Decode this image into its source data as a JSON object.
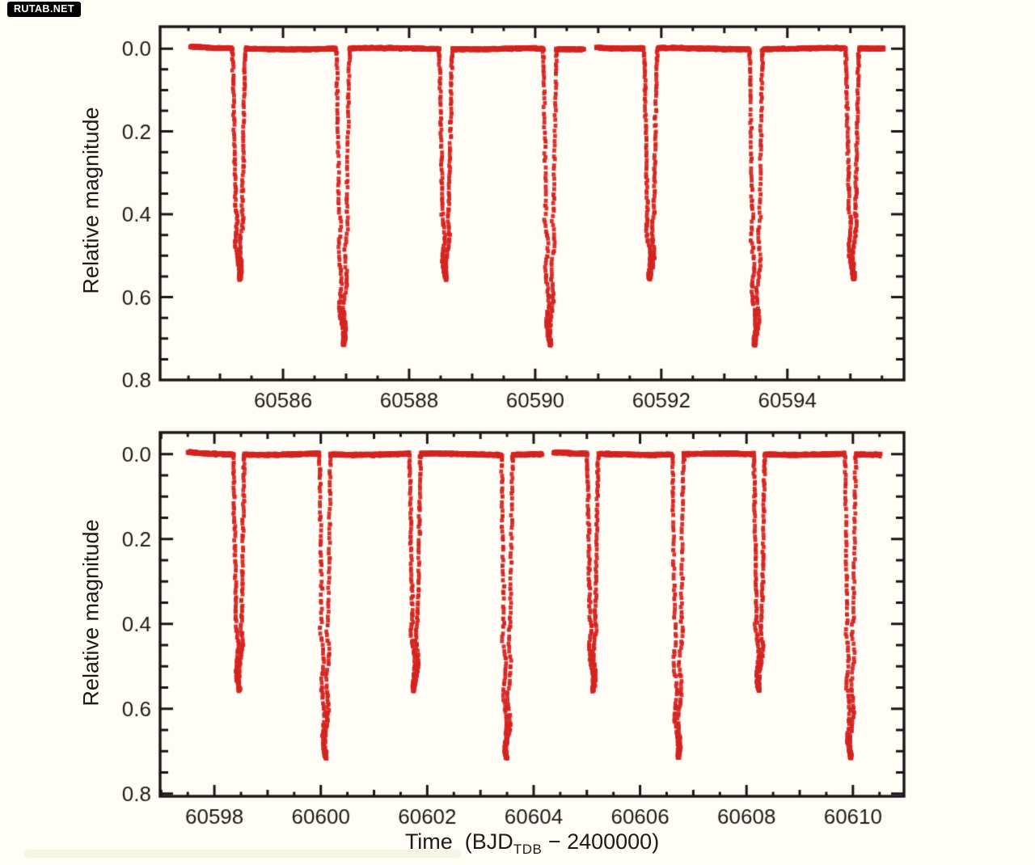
{
  "watermark": {
    "text": "RUTAB.NET",
    "bg": "#000000",
    "fg": "#ffffff"
  },
  "figure": {
    "bg_color": "#fffdf6",
    "axis_color": "#161616",
    "tick_label_color": "#1b1b1b",
    "marker_color": "#d42521",
    "ylabel": "Relative magnitude",
    "xlabel_pre": "Time  (BJD",
    "xlabel_sub": "TDB",
    "xlabel_post": " − 2400000)"
  },
  "chart_data": [
    {
      "type": "scatter",
      "panel": "top",
      "marker": "red-square-dot",
      "grid": false,
      "legend": "none",
      "xlim": [
        60584.05,
        60595.85
      ],
      "ylim": [
        -0.053,
        0.8
      ],
      "y_axis_inverted_magnitude": true,
      "xticks": [
        {
          "v": 60586,
          "label": "60586"
        },
        {
          "v": 60588,
          "label": "60588"
        },
        {
          "v": 60590,
          "label": "60590"
        },
        {
          "v": 60592,
          "label": "60592"
        },
        {
          "v": 60594,
          "label": "60594"
        }
      ],
      "xminor_step": 0.5,
      "yticks": [
        {
          "v": 0.0,
          "label": "0.0"
        },
        {
          "v": 0.2,
          "label": "0.2"
        },
        {
          "v": 0.4,
          "label": "0.4"
        },
        {
          "v": 0.6,
          "label": "0.6"
        },
        {
          "v": 0.8,
          "label": "0.8"
        }
      ],
      "yminor_step": 0.05,
      "baseline_mag": 0.0,
      "data_segments": [
        [
          60584.53,
          60590.77
        ],
        [
          60590.97,
          60595.53
        ]
      ],
      "eclipse_half_width_days": 0.105,
      "eclipses": [
        {
          "t": 60585.3,
          "depth": 0.555
        },
        {
          "t": 60586.95,
          "depth": 0.715
        },
        {
          "t": 60588.58,
          "depth": 0.555
        },
        {
          "t": 60590.23,
          "depth": 0.715
        },
        {
          "t": 60591.83,
          "depth": 0.555
        },
        {
          "t": 60593.5,
          "depth": 0.715
        },
        {
          "t": 60595.03,
          "depth": 0.555
        }
      ]
    },
    {
      "type": "scatter",
      "panel": "bottom",
      "marker": "red-square-dot",
      "grid": false,
      "legend": "none",
      "xlim": [
        60596.98,
        60610.96
      ],
      "ylim": [
        -0.051,
        0.806
      ],
      "y_axis_inverted_magnitude": true,
      "xticks": [
        {
          "v": 60598,
          "label": "60598"
        },
        {
          "v": 60600,
          "label": "60600"
        },
        {
          "v": 60602,
          "label": "60602"
        },
        {
          "v": 60604,
          "label": "60604"
        },
        {
          "v": 60606,
          "label": "60606"
        },
        {
          "v": 60608,
          "label": "60608"
        },
        {
          "v": 60610,
          "label": "60610"
        }
      ],
      "xminor_step": 0.5,
      "yticks": [
        {
          "v": 0.0,
          "label": "0.0"
        },
        {
          "v": 0.2,
          "label": "0.2"
        },
        {
          "v": 0.4,
          "label": "0.4"
        },
        {
          "v": 0.6,
          "label": "0.6"
        },
        {
          "v": 0.8,
          "label": "0.8"
        }
      ],
      "yminor_step": 0.05,
      "baseline_mag": 0.0,
      "data_segments": [
        [
          60597.51,
          60604.16
        ],
        [
          60604.38,
          60610.51
        ]
      ],
      "eclipse_half_width_days": 0.105,
      "eclipses": [
        {
          "t": 60598.46,
          "depth": 0.555
        },
        {
          "t": 60600.08,
          "depth": 0.715
        },
        {
          "t": 60601.77,
          "depth": 0.555
        },
        {
          "t": 60603.5,
          "depth": 0.715
        },
        {
          "t": 60605.11,
          "depth": 0.555
        },
        {
          "t": 60606.71,
          "depth": 0.715
        },
        {
          "t": 60608.24,
          "depth": 0.555
        },
        {
          "t": 60609.95,
          "depth": 0.715
        }
      ]
    }
  ]
}
